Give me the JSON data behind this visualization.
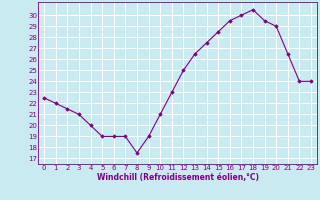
{
  "x": [
    0,
    1,
    2,
    3,
    4,
    5,
    6,
    7,
    8,
    9,
    10,
    11,
    12,
    13,
    14,
    15,
    16,
    17,
    18,
    19,
    20,
    21,
    22,
    23
  ],
  "y": [
    22.5,
    22,
    21.5,
    21,
    20,
    19,
    19,
    19,
    17.5,
    19,
    21,
    23,
    25,
    26.5,
    27.5,
    28.5,
    29.5,
    30,
    30.5,
    29.5,
    29,
    26.5,
    24,
    24
  ],
  "line_color": "#800080",
  "marker_color": "#800080",
  "bg_color": "#c8eaf0",
  "grid_color": "#ffffff",
  "xlabel": "Windchill (Refroidissement éolien,°C)",
  "ylabel_ticks": [
    17,
    18,
    19,
    20,
    21,
    22,
    23,
    24,
    25,
    26,
    27,
    28,
    29,
    30
  ],
  "ylim": [
    16.5,
    31.2
  ],
  "xlim": [
    -0.5,
    23.5
  ],
  "tick_color": "#800080",
  "label_color": "#800080",
  "font_size_ticks": 5.0,
  "font_size_xlabel": 5.5
}
